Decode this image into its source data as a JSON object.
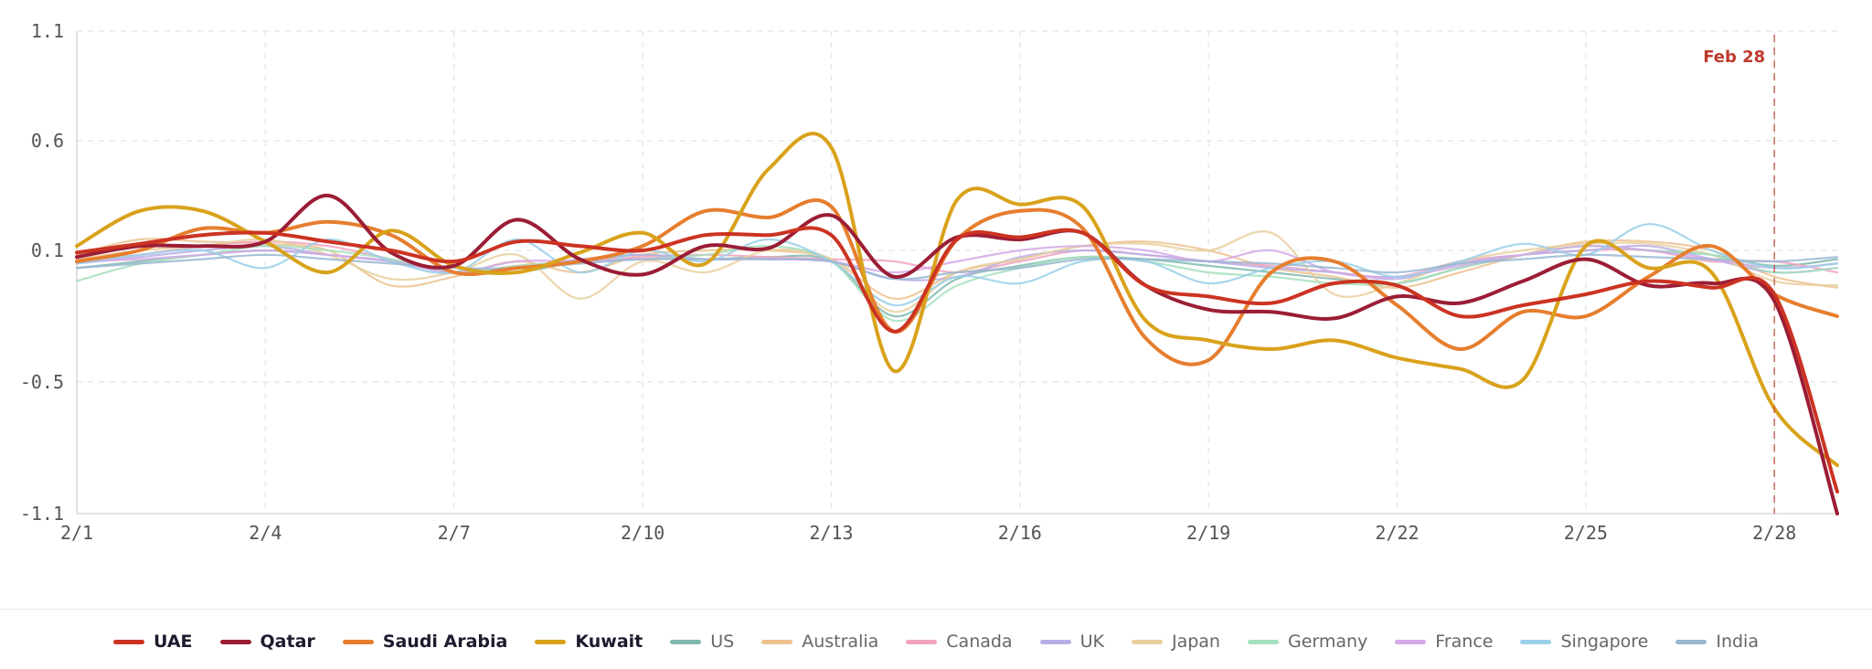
{
  "chart_data": {
    "type": "line",
    "title": "",
    "xlabel": "",
    "ylabel": "",
    "ylim": [
      -1.1,
      1.1
    ],
    "y_ticks": [
      "1.1",
      "0.6",
      "0.1",
      "-0.5",
      "-1.1"
    ],
    "y_tick_values": [
      1.1,
      0.6,
      0.1,
      -0.5,
      -1.1
    ],
    "x_ticks": [
      "2/1",
      "2/4",
      "2/7",
      "2/10",
      "2/13",
      "2/16",
      "2/19",
      "2/22",
      "2/25",
      "2/28"
    ],
    "x_tick_days": [
      1,
      4,
      7,
      10,
      13,
      16,
      19,
      22,
      25,
      28
    ],
    "xlim": [
      1,
      29
    ],
    "days": [
      1,
      2,
      3,
      4,
      5,
      6,
      7,
      8,
      9,
      10,
      11,
      12,
      13,
      14,
      15,
      16,
      17,
      18,
      19,
      20,
      21,
      22,
      23,
      24,
      25,
      26,
      27,
      28,
      29
    ],
    "marker": {
      "day": 28,
      "label": "Feb 28",
      "color": "#c0392b"
    },
    "series": [
      {
        "name": "US",
        "color": "#7fb8ae",
        "primary": false,
        "values": [
          0.02,
          0.05,
          0.08,
          0.1,
          0.08,
          0.05,
          0.0,
          0.0,
          0.05,
          0.08,
          0.06,
          0.07,
          0.05,
          -0.2,
          -0.03,
          0.03,
          0.07,
          0.06,
          0.03,
          0.0,
          -0.03,
          -0.05,
          0.02,
          0.08,
          0.12,
          0.1,
          0.08,
          0.03,
          0.06
        ]
      },
      {
        "name": "Australia",
        "color": "#ecc28f",
        "primary": false,
        "values": [
          0.08,
          0.15,
          0.14,
          0.13,
          0.1,
          -0.06,
          -0.02,
          0.05,
          0.0,
          0.08,
          0.1,
          0.1,
          0.06,
          -0.12,
          0.0,
          0.06,
          0.12,
          0.14,
          0.1,
          0.02,
          -0.02,
          -0.07,
          0.0,
          0.08,
          0.14,
          0.14,
          0.1,
          -0.02,
          -0.07
        ]
      },
      {
        "name": "Canada",
        "color": "#f0a3c0",
        "primary": false,
        "values": [
          0.05,
          0.08,
          0.12,
          0.14,
          0.12,
          0.06,
          0.0,
          0.03,
          0.05,
          0.07,
          0.08,
          0.07,
          0.06,
          0.05,
          0.0,
          0.05,
          0.1,
          0.08,
          0.05,
          0.03,
          0.0,
          -0.02,
          0.05,
          0.08,
          0.1,
          0.1,
          0.05,
          0.05,
          0.0
        ]
      },
      {
        "name": "UK",
        "color": "#b8aee6",
        "primary": false,
        "values": [
          0.04,
          0.07,
          0.1,
          0.12,
          0.08,
          0.05,
          0.0,
          0.02,
          0.06,
          0.08,
          0.06,
          0.06,
          0.05,
          -0.03,
          -0.02,
          0.07,
          0.1,
          0.08,
          0.05,
          0.02,
          0.0,
          -0.03,
          0.04,
          0.08,
          0.1,
          0.12,
          0.06,
          0.0,
          0.02
        ]
      },
      {
        "name": "Japan",
        "color": "#e8cf9e",
        "primary": false,
        "values": [
          0.06,
          0.1,
          0.12,
          0.15,
          0.08,
          -0.03,
          0.0,
          0.08,
          -0.12,
          0.05,
          0.0,
          0.1,
          0.06,
          -0.18,
          0.0,
          0.06,
          0.12,
          0.13,
          0.1,
          0.18,
          -0.1,
          -0.05,
          0.05,
          0.1,
          0.13,
          0.13,
          0.08,
          -0.04,
          -0.06
        ]
      },
      {
        "name": "Germany",
        "color": "#a6e0bd",
        "primary": false,
        "values": [
          -0.04,
          0.04,
          0.08,
          0.12,
          0.1,
          0.06,
          0.0,
          0.03,
          0.05,
          0.06,
          0.08,
          0.12,
          0.05,
          -0.22,
          -0.06,
          0.02,
          0.07,
          0.05,
          0.0,
          -0.02,
          -0.05,
          -0.05,
          0.02,
          0.08,
          0.12,
          0.1,
          0.08,
          0.0,
          0.02
        ]
      },
      {
        "name": "France",
        "color": "#d4a9e8",
        "primary": false,
        "values": [
          0.05,
          0.06,
          0.08,
          0.1,
          0.08,
          0.05,
          0.0,
          0.05,
          0.05,
          0.06,
          0.06,
          0.06,
          0.05,
          0.0,
          0.05,
          0.1,
          0.12,
          0.1,
          0.05,
          0.1,
          0.0,
          -0.02,
          0.03,
          0.08,
          0.12,
          0.1,
          0.06,
          0.02,
          0.04
        ]
      },
      {
        "name": "Singapore",
        "color": "#99cfe8",
        "primary": false,
        "values": [
          0.04,
          0.08,
          0.1,
          0.02,
          0.15,
          0.05,
          0.0,
          0.15,
          0.0,
          0.1,
          0.05,
          0.15,
          0.05,
          -0.15,
          -0.02,
          -0.05,
          0.05,
          0.05,
          -0.05,
          0.02,
          0.05,
          -0.02,
          0.05,
          0.13,
          0.08,
          0.22,
          0.1,
          0.02,
          0.04
        ]
      },
      {
        "name": "India",
        "color": "#9ab7d2",
        "primary": false,
        "values": [
          0.02,
          0.04,
          0.06,
          0.08,
          0.06,
          0.04,
          0.02,
          0.02,
          0.04,
          0.06,
          0.06,
          0.06,
          0.05,
          -0.03,
          0.0,
          0.02,
          0.06,
          0.06,
          0.05,
          0.04,
          0.02,
          0.0,
          0.04,
          0.06,
          0.08,
          0.07,
          0.06,
          0.05,
          0.07
        ]
      },
      {
        "name": "Saudi Arabia",
        "color": "#e67e2e",
        "primary": true,
        "values": [
          0.05,
          0.1,
          0.2,
          0.18,
          0.23,
          0.17,
          0.0,
          0.02,
          0.05,
          0.12,
          0.28,
          0.25,
          0.3,
          -0.27,
          0.15,
          0.28,
          0.2,
          -0.3,
          -0.4,
          0.0,
          0.05,
          -0.15,
          -0.35,
          -0.18,
          -0.2,
          -0.02,
          0.12,
          -0.1,
          -0.2
        ]
      },
      {
        "name": "Kuwait",
        "color": "#d9a21b",
        "primary": true,
        "values": [
          0.12,
          0.28,
          0.28,
          0.14,
          0.0,
          0.19,
          0.03,
          0.0,
          0.09,
          0.18,
          0.04,
          0.47,
          0.57,
          -0.45,
          0.33,
          0.31,
          0.3,
          -0.22,
          -0.31,
          -0.35,
          -0.31,
          -0.39,
          -0.44,
          -0.49,
          0.12,
          0.02,
          0.0,
          -0.62,
          -0.88
        ]
      },
      {
        "name": "Qatar",
        "color": "#9b1d35",
        "primary": true,
        "values": [
          0.07,
          0.12,
          0.12,
          0.14,
          0.35,
          0.09,
          0.03,
          0.24,
          0.06,
          -0.01,
          0.12,
          0.11,
          0.26,
          -0.02,
          0.16,
          0.15,
          0.18,
          -0.06,
          -0.17,
          -0.18,
          -0.21,
          -0.11,
          -0.14,
          -0.04,
          0.06,
          -0.06,
          -0.05,
          -0.13,
          -1.1
        ]
      },
      {
        "name": "UAE",
        "color": "#cc3322",
        "primary": true,
        "values": [
          0.09,
          0.13,
          0.17,
          0.18,
          0.14,
          0.1,
          0.05,
          0.14,
          0.12,
          0.1,
          0.17,
          0.17,
          0.17,
          -0.27,
          0.15,
          0.16,
          0.18,
          -0.06,
          -0.11,
          -0.14,
          -0.05,
          -0.06,
          -0.2,
          -0.15,
          -0.1,
          -0.04,
          -0.07,
          -0.1,
          -1.0
        ]
      }
    ],
    "legend_order": [
      "UAE",
      "Qatar",
      "Saudi Arabia",
      "Kuwait",
      "US",
      "Australia",
      "Canada",
      "UK",
      "Japan",
      "Germany",
      "France",
      "Singapore",
      "India"
    ],
    "legend_position": "bottom-center"
  }
}
